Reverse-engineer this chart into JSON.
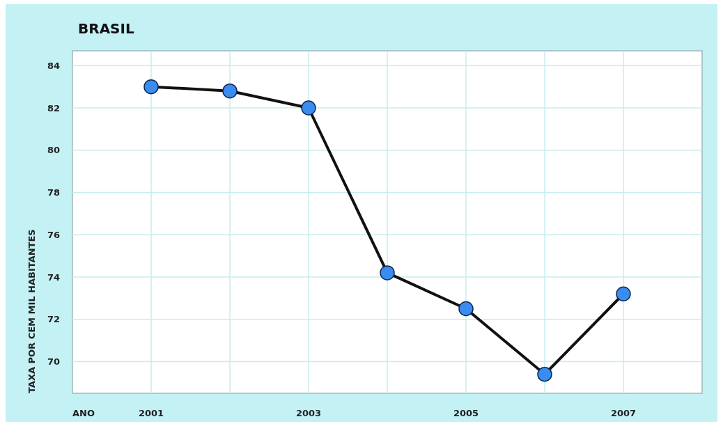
{
  "chart_data": {
    "type": "line",
    "title": "BRASIL",
    "xlabel": "ANO",
    "ylabel": "TAXA POR CEM MIL HABITANTES",
    "x": [
      2001,
      2002,
      2003,
      2004,
      2005,
      2006,
      2007
    ],
    "series": [
      {
        "color": "#111111",
        "values": [
          83.0,
          82.8,
          82.0,
          74.2,
          72.5,
          69.4,
          73.2
        ]
      }
    ],
    "xlim": [
      2000,
      2008
    ],
    "xticks": [
      2001,
      {
        "value": 2002,
        "label": null
      },
      2003,
      {
        "value": 2004,
        "label": null
      },
      2005,
      {
        "value": 2006,
        "label": null
      },
      2007
    ],
    "ylim": [
      68.5,
      84.7
    ],
    "yticks": [
      70,
      72,
      74,
      76,
      78,
      80,
      82,
      84
    ],
    "grid": true,
    "marker": "circle",
    "line_style": "solid"
  }
}
